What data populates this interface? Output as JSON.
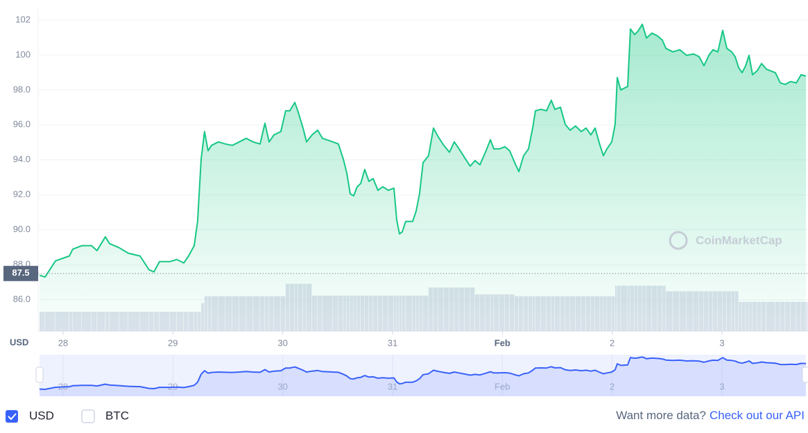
{
  "chart_data": {
    "type": "line",
    "y_axis_label": "USD",
    "watermark": "CoinMarketCap",
    "current_price": 87.5,
    "xlim": [
      -0.227,
      6.783
    ],
    "xticks": [
      {
        "value": 0,
        "label": "28"
      },
      {
        "value": 1,
        "label": "29"
      },
      {
        "value": 2,
        "label": "30"
      },
      {
        "value": 3,
        "label": "31"
      },
      {
        "value": 4,
        "label": "Feb"
      },
      {
        "value": 5,
        "label": "2"
      },
      {
        "value": 6,
        "label": "3"
      }
    ],
    "ylim": [
      84.2,
      102.75
    ],
    "yticks": [
      {
        "value": 86,
        "label": "86.0"
      },
      {
        "value": 88,
        "label": "88.0"
      },
      {
        "value": 90,
        "label": "90.0"
      },
      {
        "value": 92,
        "label": "92.0"
      },
      {
        "value": 94,
        "label": "94.0"
      },
      {
        "value": 96,
        "label": "96.0"
      },
      {
        "value": 98,
        "label": "98.0"
      },
      100,
      102
    ],
    "grid": true,
    "x": [
      -0.215,
      -0.164,
      -0.069,
      0.057,
      0.088,
      0.171,
      0.259,
      0.309,
      0.385,
      0.423,
      0.512,
      0.594,
      0.701,
      0.783,
      0.827,
      0.878,
      0.973,
      1.036,
      1.099,
      1.143,
      1.194,
      1.225,
      1.257,
      1.288,
      1.32,
      1.352,
      1.415,
      1.478,
      1.541,
      1.604,
      1.667,
      1.73,
      1.794,
      1.838,
      1.876,
      1.92,
      1.983,
      2.027,
      2.065,
      2.11,
      2.141,
      2.185,
      2.217,
      2.267,
      2.318,
      2.362,
      2.457,
      2.507,
      2.552,
      2.583,
      2.615,
      2.646,
      2.678,
      2.71,
      2.747,
      2.785,
      2.823,
      2.867,
      2.912,
      2.962,
      3.013,
      3.038,
      3.063,
      3.088,
      3.12,
      3.183,
      3.215,
      3.246,
      3.278,
      3.328,
      3.373,
      3.417,
      3.467,
      3.518,
      3.562,
      3.606,
      3.657,
      3.707,
      3.751,
      3.796,
      3.846,
      3.891,
      3.922,
      3.973,
      4.023,
      4.067,
      4.112,
      4.15,
      4.194,
      4.238,
      4.276,
      4.301,
      4.352,
      4.402,
      4.446,
      4.478,
      4.529,
      4.573,
      4.617,
      4.667,
      4.718,
      4.762,
      4.806,
      4.844,
      4.889,
      4.92,
      4.952,
      4.996,
      5.027,
      5.046,
      5.078,
      5.141,
      5.166,
      5.204,
      5.236,
      5.274,
      5.312,
      5.362,
      5.413,
      5.457,
      5.489,
      5.552,
      5.615,
      5.678,
      5.741,
      5.792,
      5.836,
      5.88,
      5.918,
      5.962,
      6.006,
      6.044,
      6.088,
      6.12,
      6.152,
      6.183,
      6.215,
      6.246,
      6.278,
      6.322,
      6.36,
      6.404,
      6.486,
      6.531,
      6.575,
      6.625,
      6.676,
      6.72,
      6.765
    ],
    "series": [
      {
        "name": "USD",
        "color": "#16c784",
        "values": [
          87.4,
          87.3,
          88.22,
          88.5,
          88.89,
          89.09,
          89.09,
          88.81,
          89.6,
          89.21,
          88.97,
          88.66,
          88.5,
          87.71,
          87.59,
          88.18,
          88.18,
          88.3,
          88.1,
          88.5,
          89.09,
          90.48,
          94.04,
          95.62,
          94.52,
          94.83,
          95.03,
          94.91,
          94.83,
          95.03,
          95.23,
          95.03,
          94.91,
          96.1,
          95.03,
          95.43,
          95.62,
          96.81,
          96.81,
          97.29,
          96.73,
          95.82,
          95.03,
          95.43,
          95.7,
          95.23,
          95.03,
          94.91,
          94.04,
          93.25,
          92.06,
          91.94,
          92.46,
          92.65,
          93.45,
          92.77,
          92.93,
          92.26,
          92.46,
          92.26,
          92.38,
          90.56,
          89.76,
          89.88,
          90.48,
          90.48,
          91.07,
          92.06,
          93.84,
          94.24,
          95.82,
          95.31,
          94.83,
          94.44,
          95.03,
          94.63,
          94.12,
          93.64,
          93.96,
          93.72,
          94.44,
          95.15,
          94.63,
          94.63,
          94.75,
          94.52,
          93.84,
          93.33,
          94.24,
          94.63,
          95.82,
          96.81,
          96.89,
          96.81,
          97.41,
          96.89,
          97.01,
          96.02,
          95.7,
          95.94,
          95.62,
          95.82,
          95.43,
          95.82,
          94.83,
          94.24,
          94.63,
          95.03,
          96.02,
          98.71,
          98.0,
          98.2,
          101.49,
          101.17,
          101.37,
          101.76,
          100.97,
          101.25,
          101.09,
          100.85,
          100.38,
          100.18,
          100.3,
          99.98,
          100.06,
          99.9,
          99.39,
          99.98,
          100.3,
          100.18,
          101.41,
          100.38,
          100.18,
          99.9,
          99.27,
          98.99,
          99.39,
          99.98,
          98.87,
          99.11,
          99.51,
          99.19,
          98.99,
          98.4,
          98.32,
          98.48,
          98.4,
          98.87,
          98.79
        ]
      }
    ],
    "volume": {
      "color": "#cfd6e4",
      "ylim": [
        0,
        100
      ],
      "values": [
        31,
        31,
        31,
        31,
        31,
        31,
        31,
        31,
        31,
        31,
        31,
        31,
        31,
        31,
        31,
        31,
        31,
        31,
        31,
        31,
        31,
        31,
        45,
        56,
        56,
        56,
        56,
        56,
        56,
        56,
        56,
        56,
        56,
        56,
        56,
        56,
        56,
        76,
        76,
        76,
        76,
        76,
        76,
        57,
        57,
        57,
        57,
        57,
        57,
        57,
        57,
        57,
        57,
        57,
        57,
        57,
        57,
        57,
        57,
        57,
        57,
        57,
        57,
        57,
        57,
        57,
        57,
        57,
        57,
        70,
        70,
        70,
        70,
        70,
        70,
        70,
        70,
        70,
        59,
        59,
        59,
        59,
        59,
        59,
        59,
        59,
        56,
        56,
        56,
        56,
        56,
        56,
        56,
        56,
        56,
        56,
        56,
        56,
        56,
        56,
        56,
        56,
        56,
        56,
        56,
        56,
        56,
        56,
        73,
        73,
        73,
        73,
        73,
        73,
        73,
        73,
        73,
        73,
        73,
        73,
        64,
        64,
        64,
        64,
        64,
        64,
        64,
        64,
        64,
        64,
        64,
        64,
        64,
        64,
        47,
        47,
        47,
        47,
        47,
        47,
        47,
        47,
        47,
        47,
        47,
        47,
        47,
        47,
        47
      ]
    },
    "navigator_color": "#3861fb",
    "legend": [
      {
        "label": "USD",
        "checked": true
      },
      {
        "label": "BTC",
        "checked": false
      }
    ],
    "footer": {
      "text": "Want more data?",
      "link": "Check out our API"
    }
  }
}
